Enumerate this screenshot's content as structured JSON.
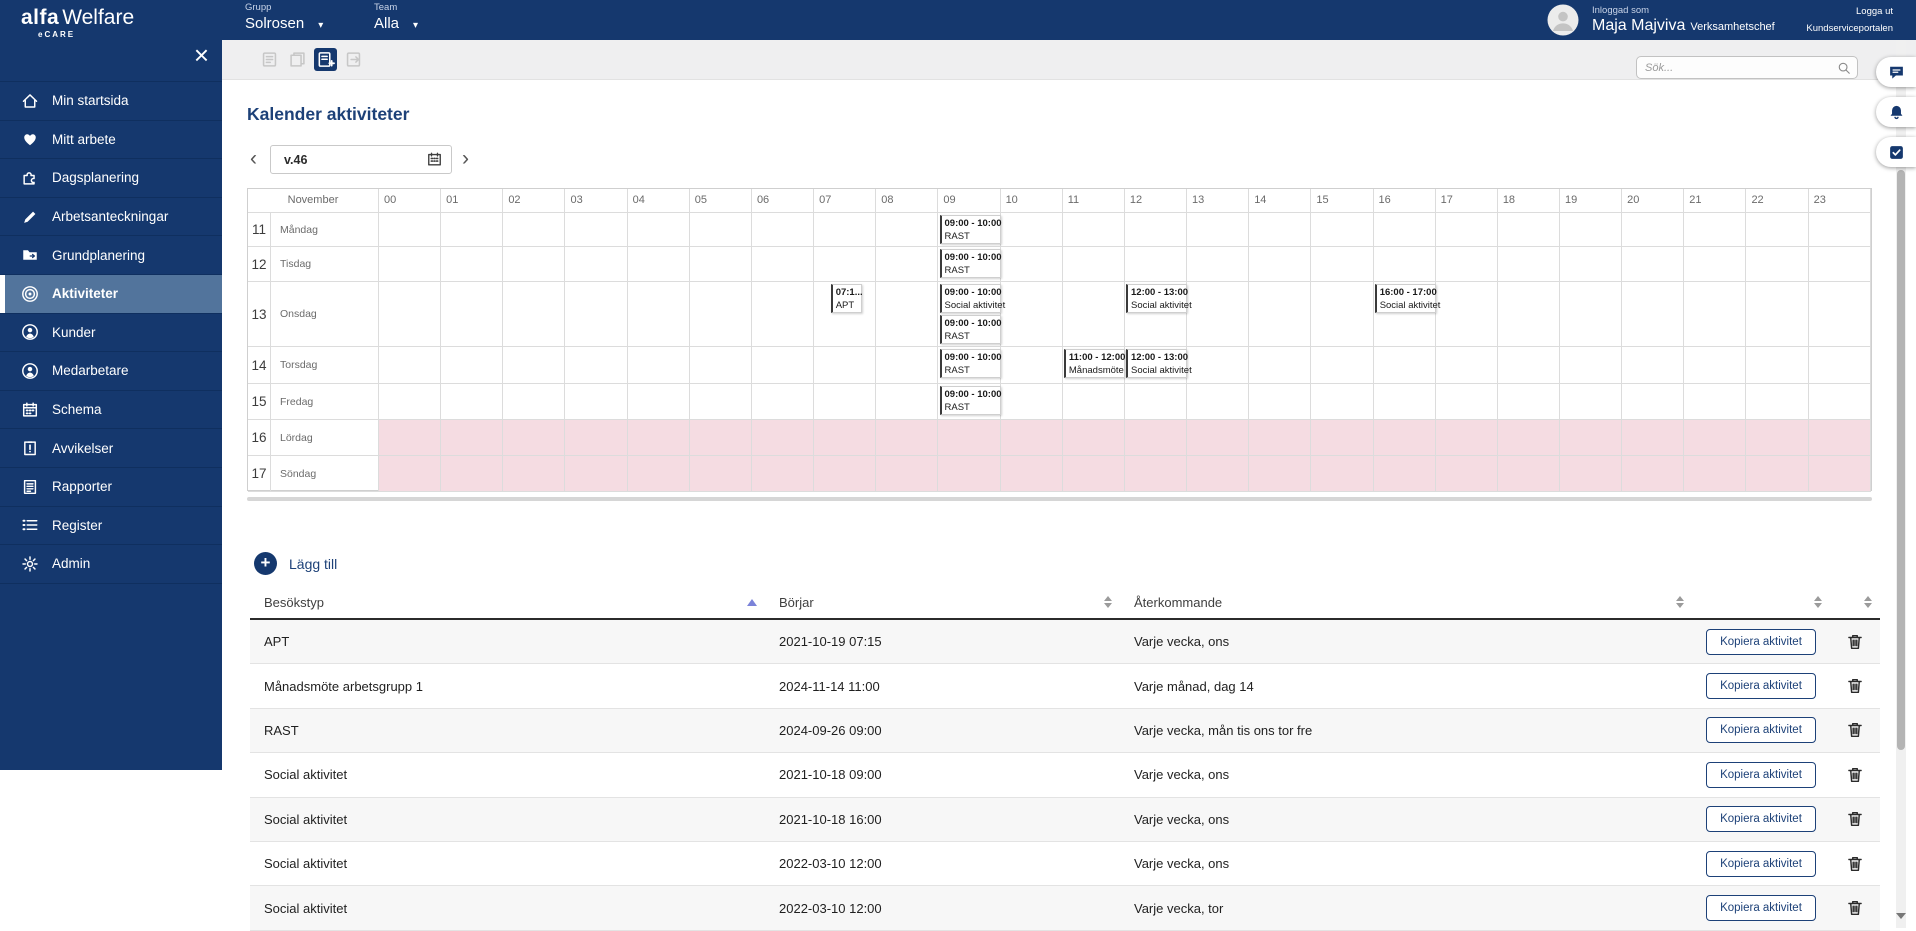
{
  "topbar": {
    "logo": {
      "brand": "alfa",
      "product": "Welfare",
      "sub": "eCARE"
    },
    "group": {
      "label": "Grupp",
      "value": "Solrosen"
    },
    "team": {
      "label": "Team",
      "value": "Alla"
    },
    "user": {
      "prefix": "Inloggad som",
      "name": "Maja Majviva",
      "role": "Verksamhetschef"
    },
    "logout": "Logga ut",
    "portal": "Kundserviceportalen"
  },
  "sidebar": {
    "items": [
      {
        "key": "min-startsida",
        "label": "Min startsida",
        "icon": "home-icon",
        "active": false
      },
      {
        "key": "mitt-arbete",
        "label": "Mitt arbete",
        "icon": "heart-icon",
        "active": false
      },
      {
        "key": "dagsplanering",
        "label": "Dagsplanering",
        "icon": "puzzle-icon",
        "active": false
      },
      {
        "key": "arbetsanteckningar",
        "label": "Arbetsanteckningar",
        "icon": "pen-icon",
        "active": false
      },
      {
        "key": "grundplanering",
        "label": "Grundplanering",
        "icon": "folder-icon",
        "active": false
      },
      {
        "key": "aktiviteter",
        "label": "Aktiviteter",
        "icon": "target-icon",
        "active": true
      },
      {
        "key": "kunder",
        "label": "Kunder",
        "icon": "customers-icon",
        "active": false
      },
      {
        "key": "medarbetare",
        "label": "Medarbetare",
        "icon": "employee-icon",
        "active": false
      },
      {
        "key": "schema",
        "label": "Schema",
        "icon": "calendar-icon",
        "active": false
      },
      {
        "key": "avvikelser",
        "label": "Avvikelser",
        "icon": "alert-clipboard-icon",
        "active": false
      },
      {
        "key": "rapporter",
        "label": "Rapporter",
        "icon": "report-icon",
        "active": false
      },
      {
        "key": "register",
        "label": "Register",
        "icon": "list-icon",
        "active": false
      },
      {
        "key": "admin",
        "label": "Admin",
        "icon": "gear-icon",
        "active": false
      }
    ]
  },
  "toolbar": {
    "buttons": [
      {
        "key": "document",
        "icon": "doc-lines-icon",
        "active": false
      },
      {
        "key": "copy",
        "icon": "copy-icon",
        "active": false
      },
      {
        "key": "add-document",
        "icon": "doc-add-icon",
        "active": true
      },
      {
        "key": "export",
        "icon": "doc-export-icon",
        "active": false
      }
    ],
    "search_placeholder": "Sök..."
  },
  "page": {
    "title": "Kalender aktiviteter"
  },
  "week_nav": {
    "value": "v.46"
  },
  "calendar": {
    "month_label": "November",
    "hours": [
      "00",
      "01",
      "02",
      "03",
      "04",
      "05",
      "06",
      "07",
      "08",
      "09",
      "10",
      "11",
      "12",
      "13",
      "14",
      "15",
      "16",
      "17",
      "18",
      "19",
      "20",
      "21",
      "22",
      "23"
    ],
    "days": [
      {
        "num": "11",
        "name": "Måndag",
        "weekend": false
      },
      {
        "num": "12",
        "name": "Tisdag",
        "weekend": false
      },
      {
        "num": "13",
        "name": "Onsdag",
        "weekend": false
      },
      {
        "num": "14",
        "name": "Torsdag",
        "weekend": false
      },
      {
        "num": "15",
        "name": "Fredag",
        "weekend": false
      },
      {
        "num": "16",
        "name": "Lördag",
        "weekend": true
      },
      {
        "num": "17",
        "name": "Söndag",
        "weekend": true
      }
    ],
    "events": [
      {
        "day": 0,
        "start": "09:00",
        "time": "09:00 - 10:00",
        "label": "RAST"
      },
      {
        "day": 1,
        "start": "09:00",
        "time": "09:00 - 10:00",
        "label": "RAST"
      },
      {
        "day": 2,
        "start": "07:15",
        "time": "07:1...",
        "label": "APT",
        "short": true
      },
      {
        "day": 2,
        "start": "09:00",
        "time": "09:00 - 10:00",
        "label": "Social aktivitet"
      },
      {
        "day": 2,
        "start": "09:00",
        "time": "09:00 - 10:00",
        "label": "RAST",
        "stack": 1
      },
      {
        "day": 2,
        "start": "12:00",
        "time": "12:00 - 13:00",
        "label": "Social aktivitet"
      },
      {
        "day": 2,
        "start": "16:00",
        "time": "16:00 - 17:00",
        "label": "Social aktivitet"
      },
      {
        "day": 3,
        "start": "09:00",
        "time": "09:00 - 10:00",
        "label": "RAST"
      },
      {
        "day": 3,
        "start": "11:00",
        "time": "11:00 - 12:00",
        "label": "Månadsmöte"
      },
      {
        "day": 3,
        "start": "12:00",
        "time": "12:00 - 13:00",
        "label": "Social aktivitet"
      },
      {
        "day": 4,
        "start": "09:00",
        "time": "09:00 - 10:00",
        "label": "RAST"
      }
    ]
  },
  "add_activity": {
    "label": "Lägg till"
  },
  "table": {
    "columns": [
      {
        "label": "Besökstyp",
        "sort": "asc"
      },
      {
        "label": "Börjar",
        "sort": "both"
      },
      {
        "label": "Återkommande",
        "sort": "both"
      },
      {
        "label": "",
        "sort": "both"
      },
      {
        "label": "",
        "sort": "both"
      }
    ],
    "copy_button": "Kopiera aktivitet",
    "rows": [
      {
        "type": "APT",
        "starts": "2021-10-19 07:15",
        "recurring": "Varje vecka, ons"
      },
      {
        "type": "Månadsmöte arbetsgrupp 1",
        "starts": "2024-11-14 11:00",
        "recurring": "Varje månad, dag 14"
      },
      {
        "type": "RAST",
        "starts": "2024-09-26 09:00",
        "recurring": "Varje vecka, mån tis ons tor fre"
      },
      {
        "type": "Social aktivitet",
        "starts": "2021-10-18 09:00",
        "recurring": "Varje vecka, ons"
      },
      {
        "type": "Social aktivitet",
        "starts": "2021-10-18 16:00",
        "recurring": "Varje vecka, ons"
      },
      {
        "type": "Social aktivitet",
        "starts": "2022-03-10 12:00",
        "recurring": "Varje vecka, ons"
      },
      {
        "type": "Social aktivitet",
        "starts": "2022-03-10 12:00",
        "recurring": "Varje vecka, tor"
      }
    ]
  },
  "rail": {
    "buttons": [
      {
        "key": "messages",
        "icon": "chat-icon"
      },
      {
        "key": "notifications",
        "icon": "bell-icon"
      },
      {
        "key": "tasks",
        "icon": "check-icon"
      }
    ]
  },
  "colors": {
    "navy": "#15386E",
    "active_item": "#52749C",
    "weekend_pink": "#F5DCE2",
    "title_navy": "#1D4178"
  }
}
